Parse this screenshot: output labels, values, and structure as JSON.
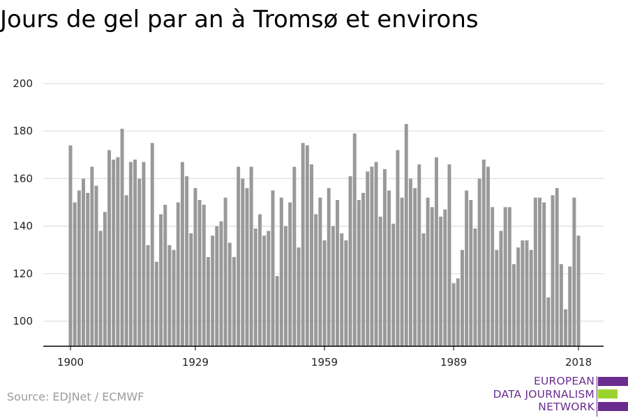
{
  "header": {
    "title": "Jours de gel par an à Tromsø et environs"
  },
  "footer": {
    "source": "Source: EDJNet / ECMWF"
  },
  "logo": {
    "lines": [
      "EUROPEAN",
      "DATA JOURNALISM",
      "NETWORK"
    ],
    "colors": {
      "purple": "#6a2c8f",
      "green": "#9bd32e"
    }
  },
  "colors": {
    "bar": "#999999",
    "grid": "#dddddd",
    "axis": "#000000"
  },
  "chart_data": {
    "type": "bar",
    "title": "Jours de gel par an à Tromsø et environs",
    "xlabel": "",
    "ylabel": "",
    "ylim": [
      89,
      200
    ],
    "yticks": [
      100,
      120,
      140,
      160,
      180,
      200
    ],
    "xticks": [
      1900,
      1929,
      1959,
      1989,
      2018
    ],
    "grid": true,
    "x": [
      1900,
      1901,
      1902,
      1903,
      1904,
      1905,
      1906,
      1907,
      1908,
      1909,
      1910,
      1911,
      1912,
      1913,
      1914,
      1915,
      1916,
      1917,
      1918,
      1919,
      1920,
      1921,
      1922,
      1923,
      1924,
      1925,
      1926,
      1927,
      1928,
      1929,
      1930,
      1931,
      1932,
      1933,
      1934,
      1935,
      1936,
      1937,
      1938,
      1939,
      1940,
      1941,
      1942,
      1943,
      1944,
      1945,
      1946,
      1947,
      1948,
      1949,
      1950,
      1951,
      1952,
      1953,
      1954,
      1955,
      1956,
      1957,
      1958,
      1959,
      1960,
      1961,
      1962,
      1963,
      1964,
      1965,
      1966,
      1967,
      1968,
      1969,
      1970,
      1971,
      1972,
      1973,
      1974,
      1975,
      1976,
      1977,
      1978,
      1979,
      1980,
      1981,
      1982,
      1983,
      1984,
      1985,
      1986,
      1987,
      1988,
      1989,
      1990,
      1991,
      1992,
      1993,
      1994,
      1995,
      1996,
      1997,
      1998,
      1999,
      2000,
      2001,
      2002,
      2003,
      2004,
      2005,
      2006,
      2007,
      2008,
      2009,
      2010,
      2011,
      2012,
      2013,
      2014,
      2015,
      2016,
      2017,
      2018
    ],
    "values": [
      174,
      150,
      155,
      160,
      154,
      165,
      157,
      138,
      146,
      172,
      168,
      169,
      181,
      153,
      167,
      168,
      160,
      167,
      132,
      175,
      125,
      145,
      149,
      132,
      130,
      150,
      167,
      161,
      137,
      156,
      151,
      149,
      127,
      136,
      140,
      142,
      152,
      133,
      127,
      165,
      160,
      156,
      165,
      139,
      145,
      136,
      138,
      155,
      119,
      152,
      140,
      150,
      165,
      131,
      175,
      174,
      166,
      145,
      152,
      134,
      156,
      140,
      151,
      137,
      134,
      161,
      179,
      151,
      154,
      163,
      165,
      167,
      144,
      164,
      155,
      141,
      172,
      152,
      183,
      160,
      156,
      166,
      137,
      152,
      148,
      169,
      144,
      147,
      166,
      116,
      118,
      130,
      155,
      151,
      139,
      160,
      168,
      165,
      148,
      130,
      138,
      148,
      148,
      124,
      131,
      134,
      134,
      130,
      152,
      152,
      150,
      110,
      153,
      156,
      124,
      105,
      123,
      152,
      136
    ]
  }
}
